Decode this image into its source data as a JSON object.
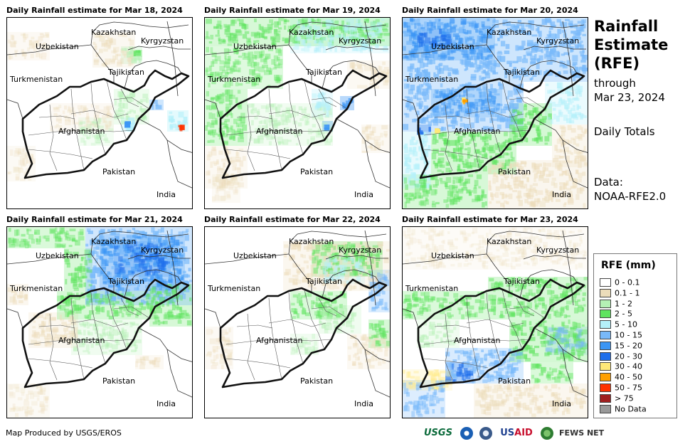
{
  "panels": [
    {
      "title": "Daily Rainfall estimate for Mar 18, 2024",
      "date": "Mar 18"
    },
    {
      "title": "Daily Rainfall estimate for Mar 19, 2024",
      "date": "Mar 19"
    },
    {
      "title": "Daily Rainfall estimate for Mar 20, 2024",
      "date": "Mar 20"
    },
    {
      "title": "Daily Rainfall estimate for Mar 21, 2024",
      "date": "Mar 21"
    },
    {
      "title": "Daily Rainfall estimate for Mar 22, 2024",
      "date": "Mar 22"
    },
    {
      "title": "Daily Rainfall estimate for Mar 23, 2024",
      "date": "Mar 23"
    }
  ],
  "map_labels": {
    "kazakhstan": "Kazakhstan",
    "kyrgyzstan": "Kyrgyzstan",
    "uzbekistan": "Uzbekistan",
    "tajikistan": "Tajikistan",
    "turkmenistan": "Turkmenistan",
    "afghanistan": "Afghanistan",
    "pakistan": "Pakistan",
    "india": "India"
  },
  "side": {
    "title_line1": "Rainfall",
    "title_line2": "Estimate",
    "title_line3": "(RFE)",
    "through_line1": "through",
    "through_line2": "Mar 23, 2024",
    "daily_totals": "Daily Totals",
    "data_line1": "Data:",
    "data_line2": "NOAA-RFE2.0"
  },
  "legend": {
    "title": "RFE (mm)",
    "items": [
      {
        "label": "0 - 0.1",
        "color": "#ffffff"
      },
      {
        "label": "0.1 - 1",
        "color": "#ecdcba"
      },
      {
        "label": "1 - 2",
        "color": "#b4f0b4"
      },
      {
        "label": "2 - 5",
        "color": "#5fe45f"
      },
      {
        "label": "5 - 10",
        "color": "#b4f0fa"
      },
      {
        "label": "10 - 15",
        "color": "#78b9fa"
      },
      {
        "label": "15 - 20",
        "color": "#3c96f5"
      },
      {
        "label": "20 - 30",
        "color": "#1e6eeb"
      },
      {
        "label": "30 - 40",
        "color": "#ffe878"
      },
      {
        "label": "40 - 50",
        "color": "#ffa000"
      },
      {
        "label": "50 - 75",
        "color": "#ff3200"
      },
      {
        "label": "> 75",
        "color": "#a01e1e"
      },
      {
        "label": "No Data",
        "color": "#999999"
      }
    ]
  },
  "footer": {
    "credit": "Map Produced by USGS/EROS",
    "logo_usgs": "USGS",
    "logo_usaid_a": "US",
    "logo_usaid_b": "AID",
    "logo_fews": "FEWS NET"
  }
}
